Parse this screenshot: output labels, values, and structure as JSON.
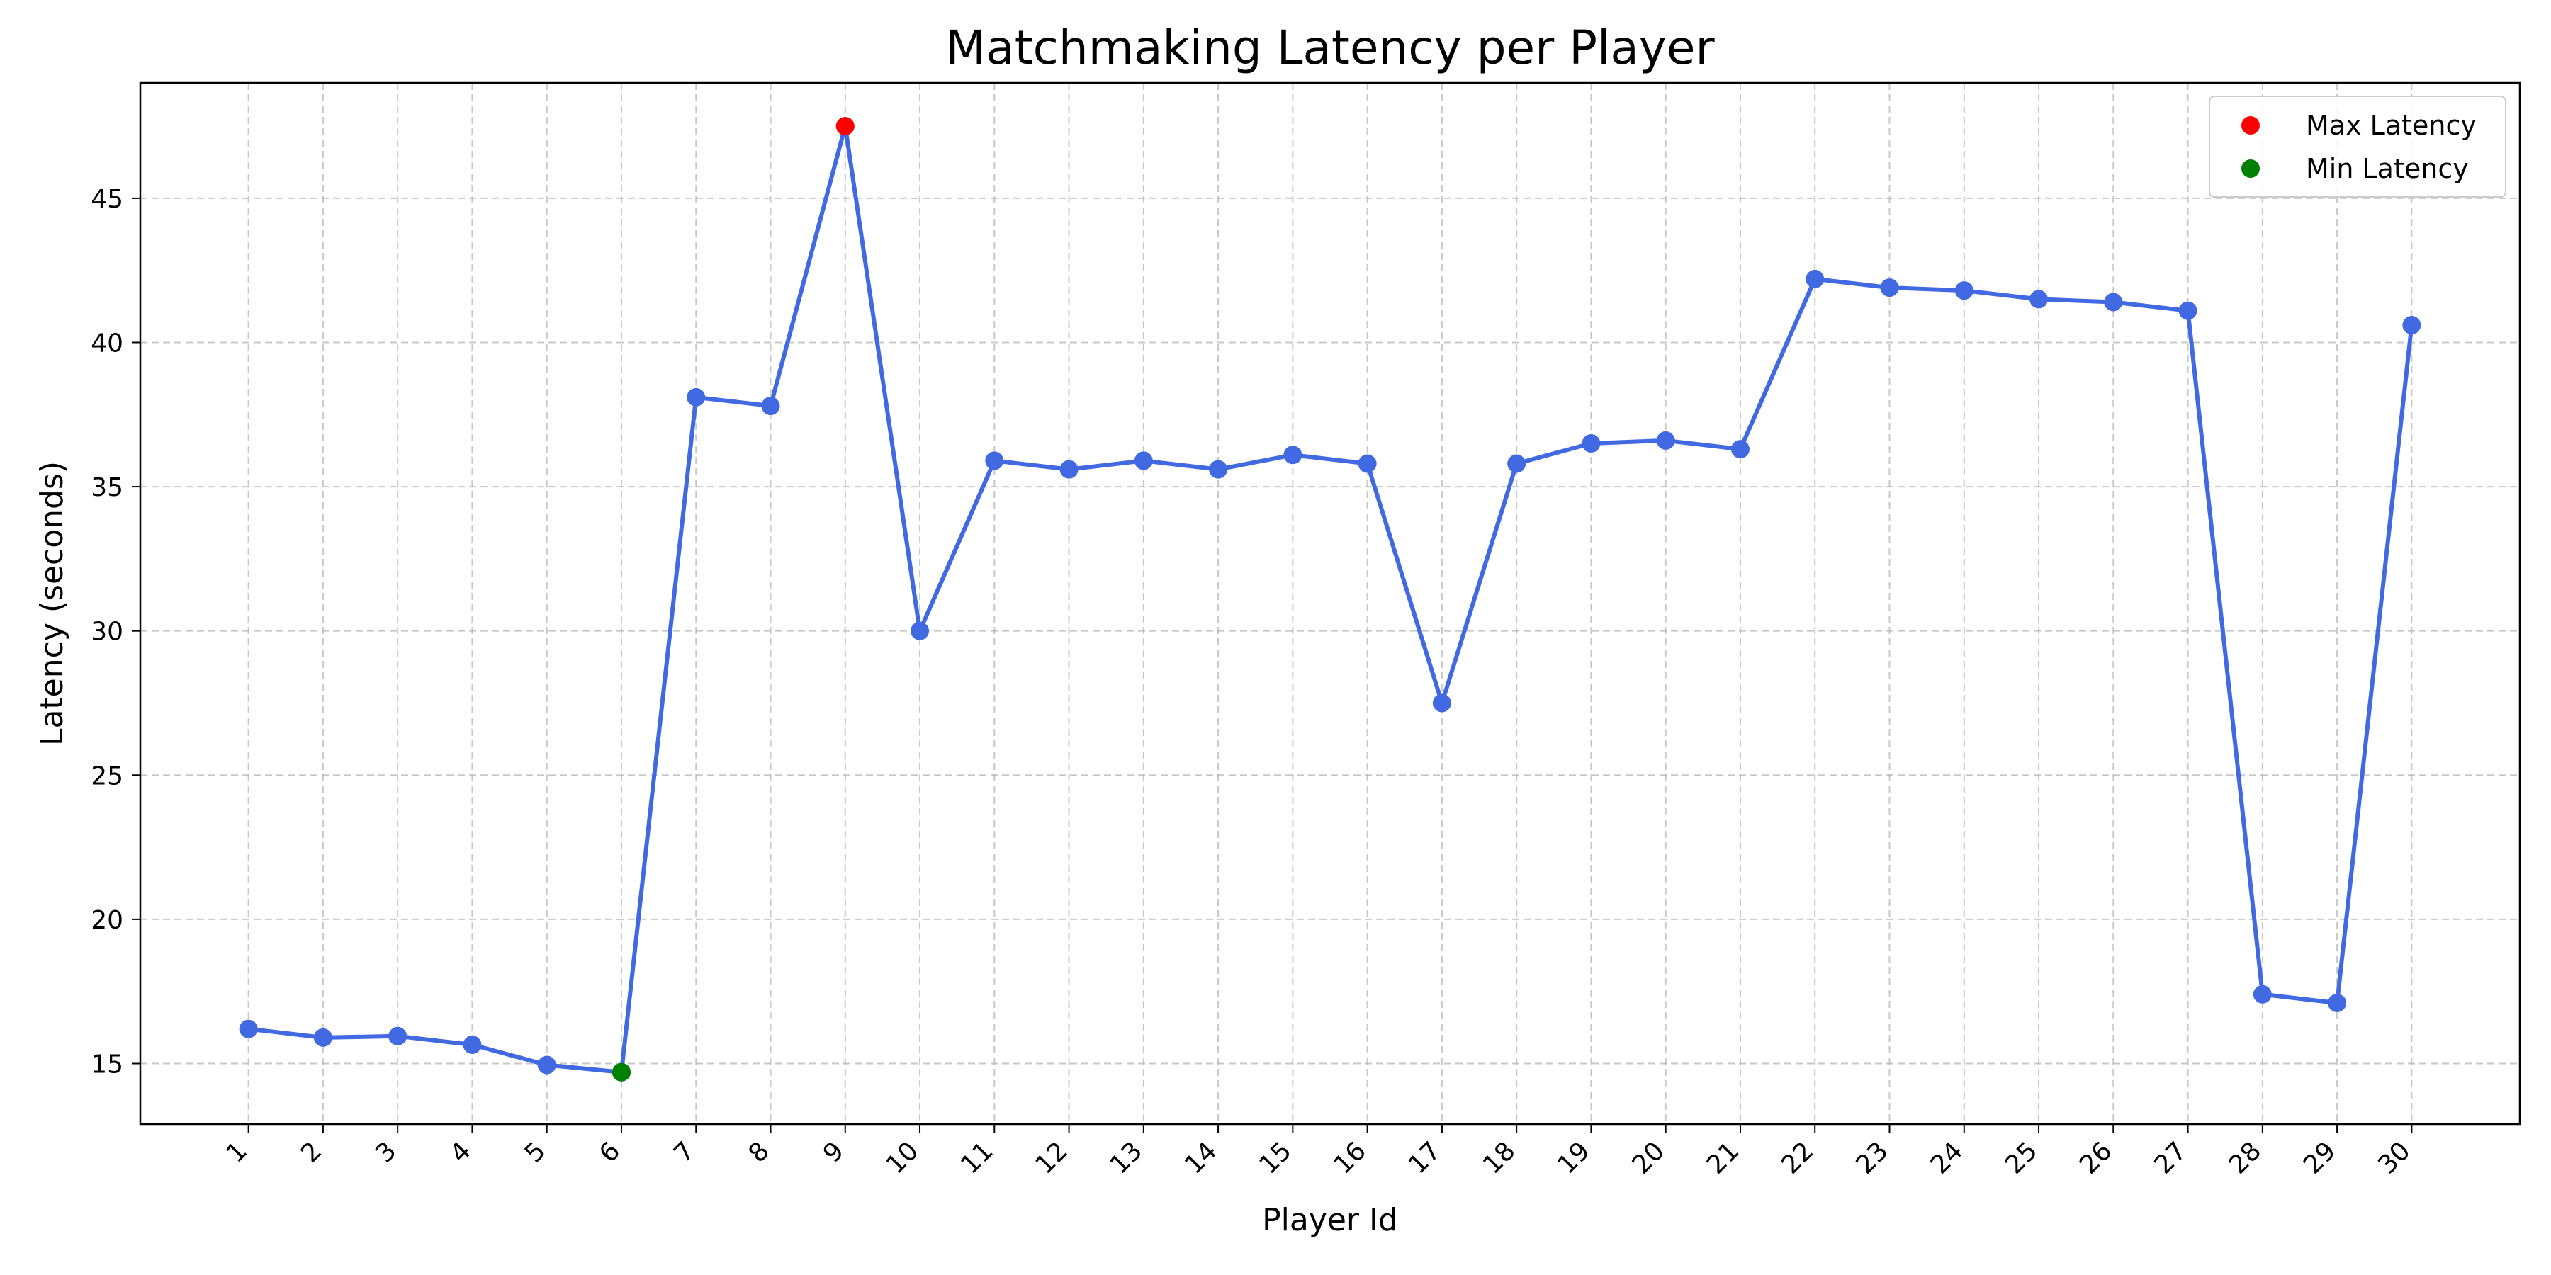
{
  "chart_data": {
    "type": "line",
    "title": "Matchmaking Latency per Player",
    "xlabel": "Player Id",
    "ylabel": "Latency (seconds)",
    "x": [
      1,
      2,
      3,
      4,
      5,
      6,
      7,
      8,
      9,
      10,
      11,
      12,
      13,
      14,
      15,
      16,
      17,
      18,
      19,
      20,
      21,
      22,
      23,
      24,
      25,
      26,
      27,
      28,
      29,
      30
    ],
    "x_tick_labels": [
      "1",
      "2",
      "3",
      "4",
      "5",
      "6",
      "7",
      "8",
      "9",
      "10",
      "11",
      "12",
      "13",
      "14",
      "15",
      "16",
      "17",
      "18",
      "19",
      "20",
      "21",
      "22",
      "23",
      "24",
      "25",
      "26",
      "27",
      "28",
      "29",
      "30"
    ],
    "series": [
      {
        "values": [
          16.2,
          15.9,
          15.95,
          15.65,
          14.95,
          14.7,
          38.1,
          37.8,
          47.5,
          30.0,
          35.9,
          35.6,
          35.9,
          35.6,
          36.1,
          35.8,
          27.5,
          35.8,
          36.5,
          36.6,
          36.3,
          42.2,
          41.9,
          41.8,
          41.5,
          41.4,
          41.1,
          17.4,
          17.1,
          40.6
        ],
        "color": "#4169e1"
      }
    ],
    "highlights": [
      {
        "name": "Max Latency",
        "x": 9,
        "y": 47.5,
        "color": "#ff0000"
      },
      {
        "name": "Min Latency",
        "x": 6,
        "y": 14.7,
        "color": "#008000"
      }
    ],
    "y_ticks": [
      15,
      20,
      25,
      30,
      35,
      40,
      45
    ],
    "xlim": [
      -0.45,
      31.45
    ],
    "ylim": [
      12.9,
      49.0
    ],
    "grid": true,
    "legend_position": "top-right"
  }
}
